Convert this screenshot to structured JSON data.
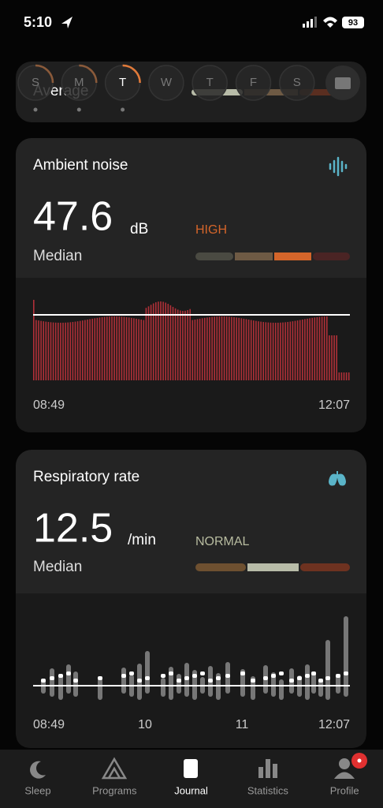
{
  "status_bar": {
    "time": "5:10",
    "battery": "93"
  },
  "week": {
    "days": [
      "S",
      "M",
      "T",
      "W",
      "T",
      "F",
      "S"
    ],
    "label": "Average"
  },
  "noise_card": {
    "title": "Ambient noise",
    "value": "47.6",
    "unit": "dB",
    "status": "HIGH",
    "caption": "Median",
    "start_time": "08:49",
    "end_time": "12:07"
  },
  "respiratory_card": {
    "title": "Respiratory rate",
    "value": "12.5",
    "unit": "/min",
    "status": "NORMAL",
    "caption": "Median",
    "axis_labels": [
      "08:49",
      "10",
      "11",
      "12:07"
    ]
  },
  "tab_bar": {
    "tabs": [
      "Sleep",
      "Programs",
      "Journal",
      "Statistics",
      "Profile"
    ]
  }
}
